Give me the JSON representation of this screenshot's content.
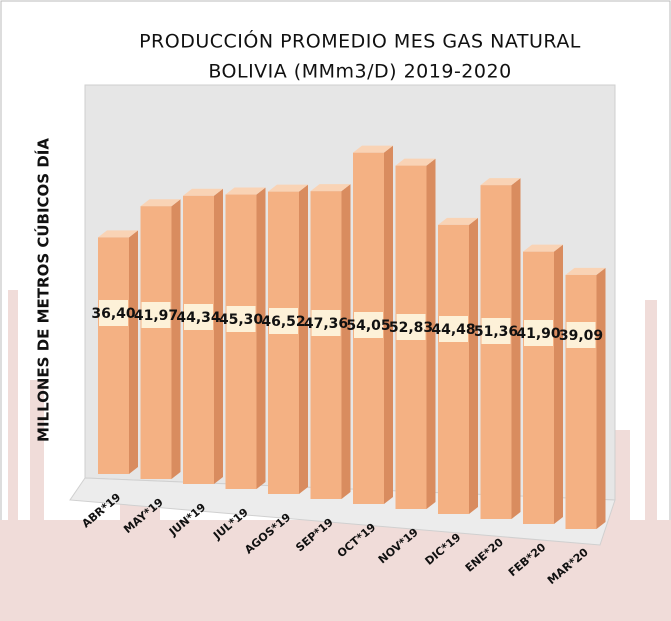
{
  "chart_data": {
    "type": "bar3d",
    "title": "PRODUCCIÓN PROMEDIO MES GAS NATURAL",
    "subtitle": "BOLIVIA (MMm3/D) 2019-2020",
    "y_label": "MILLONES DE METROS CÚBICOS DÍA",
    "categories": [
      "ABR*19",
      "MAY*19",
      "JUN*19",
      "JUL*19",
      "AGOS*19",
      "SEP*19",
      "OCT*19",
      "NOV*19",
      "DIC*19",
      "ENE*20",
      "FEB*20",
      "MAR*20"
    ],
    "values": [
      36.4,
      41.97,
      44.34,
      45.3,
      46.52,
      47.36,
      54.05,
      52.83,
      44.48,
      51.36,
      41.9,
      39.09
    ],
    "value_labels": [
      "36,40",
      "41,97",
      "44,34",
      "45,30",
      "46,52",
      "47,36",
      "54,05",
      "52,83",
      "44,48",
      "51,36",
      "41,90",
      "39,09"
    ],
    "color": "#f4b183"
  }
}
